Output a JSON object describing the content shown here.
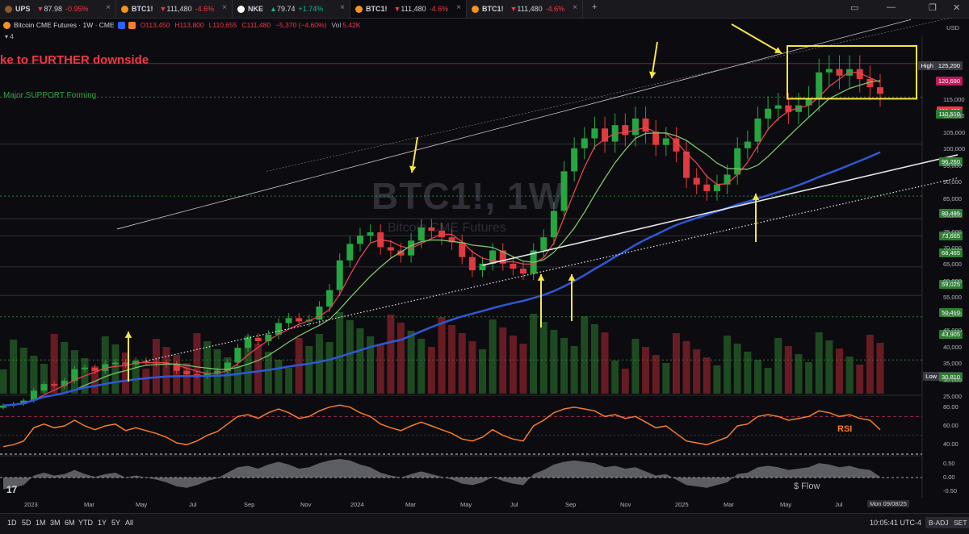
{
  "tabs": [
    {
      "symbol": "UPS",
      "price": "87.98",
      "change": "-0.95%",
      "dir": "down",
      "icon_color": "#8b5a2b"
    },
    {
      "symbol": "BTC1!",
      "price": "111,480",
      "change": "-4.6%",
      "dir": "down",
      "icon_color": "#f7931a"
    },
    {
      "symbol": "NKE",
      "price": "79.74",
      "change": "+1.74%",
      "dir": "up",
      "icon_color": "#ffffff"
    },
    {
      "symbol": "BTC1!",
      "price": "111,480",
      "change": "-4.6%",
      "dir": "down",
      "icon_color": "#f7931a",
      "active": true
    },
    {
      "symbol": "BTC1!",
      "price": "111,480",
      "change": "-4.6%",
      "dir": "down",
      "icon_color": "#f7931a"
    }
  ],
  "window": {
    "add": "+",
    "icons": [
      "layout-icon",
      "minimize-icon",
      "restore-icon",
      "close-icon"
    ]
  },
  "legend": {
    "title": "Bitcoin CME Futures · 1W · CME",
    "open": "O113,450",
    "high": "H113,800",
    "low": "L110,655",
    "close": "C111,480",
    "change": "−5,370 (−4.60%)",
    "vol_label": "Vol",
    "vol": "5.42K",
    "indicator_count": "4"
  },
  "annotations": {
    "headline": "ke to FURTHER downside",
    "support": "Major SUPPORT Forming",
    "rsi": "RSI",
    "flow": "$ Flow",
    "watermark_symbol": "BTC1!, 1W",
    "watermark_name": "Bitcoin CME Futures"
  },
  "price_axis": {
    "currency": "USD",
    "ticks": [
      "115,000",
      "110,000",
      "105,000",
      "100,000",
      "95,000",
      "90,000",
      "85,000",
      "80,000",
      "75,000",
      "70,000",
      "65,000",
      "60,000",
      "55,000",
      "50,000",
      "45,000",
      "40,000",
      "35,000",
      "30,000",
      "25,000"
    ],
    "labels": [
      {
        "text": "High",
        "value": "125,200",
        "color": "#3a3a44"
      },
      {
        "text": "",
        "value": "120,690",
        "color": "#c2185b"
      },
      {
        "text": "",
        "value": "111,480",
        "color": "#f23645"
      },
      {
        "text": "",
        "value": "110,510",
        "color": "#2e7d32"
      },
      {
        "text": "",
        "value": "96,260",
        "color": "#2e7d32"
      },
      {
        "text": "",
        "value": "80,485",
        "color": "#2e7d32"
      },
      {
        "text": "",
        "value": "73,665",
        "color": "#2e7d32"
      },
      {
        "text": "",
        "value": "68,465",
        "color": "#2e7d32"
      },
      {
        "text": "",
        "value": "59,025",
        "color": "#2e7d32"
      },
      {
        "text": "",
        "value": "50,410",
        "color": "#2e7d32"
      },
      {
        "text": "",
        "value": "43,905",
        "color": "#2e7d32"
      },
      {
        "text": "Low",
        "value": "31,100",
        "color": "#3a3a44"
      },
      {
        "text": "",
        "value": "30,810",
        "color": "#2e7d32"
      }
    ],
    "rsi_ticks": [
      "80.00",
      "60.00",
      "40.00"
    ],
    "flow_ticks": [
      "0.50",
      "0.00",
      "-0.50"
    ]
  },
  "time_axis": {
    "labels": [
      "2023",
      "Mar",
      "May",
      "Jul",
      "Sep",
      "Nov",
      "2024",
      "Mar",
      "May",
      "Jul",
      "Sep",
      "Nov",
      "2025",
      "Mar",
      "May",
      "Jul"
    ],
    "current_date": "Mon 09/08/25"
  },
  "bottom_bar": {
    "ranges": [
      "1D",
      "5D",
      "1M",
      "3M",
      "6M",
      "YTD",
      "1Y",
      "5Y",
      "All"
    ],
    "clock": "10:05:41 UTC-4",
    "badj": "B-ADJ",
    "set": "SET"
  },
  "chart_data": {
    "type": "candlestick",
    "symbol": "BTC1!",
    "interval": "1W",
    "ylim": [
      25000,
      126000
    ],
    "last_price": 111480,
    "key_levels": [
      125200,
      120690,
      110510,
      96260,
      80485,
      73665,
      68465,
      59025,
      50410,
      43905,
      31100,
      30810
    ],
    "approx_closes": [
      17000,
      17500,
      18500,
      21500,
      23500,
      23000,
      24500,
      28000,
      28500,
      27500,
      29500,
      30000,
      29500,
      30500,
      30200,
      29800,
      29500,
      27500,
      26500,
      26000,
      26800,
      27500,
      30000,
      34500,
      37500,
      36500,
      38500,
      42000,
      43500,
      42500,
      43000,
      47000,
      52000,
      61000,
      66000,
      68500,
      69500,
      65000,
      64000,
      62500,
      67000,
      71000,
      70000,
      68000,
      66500,
      62000,
      58000,
      60000,
      64000,
      60000,
      58500,
      57000,
      64000,
      68000,
      76000,
      88000,
      95000,
      98000,
      101000,
      97000,
      102000,
      99000,
      104000,
      100000,
      96000,
      98000,
      94000,
      86000,
      84000,
      82000,
      84000,
      87000,
      95000,
      97000,
      104000,
      107000,
      108000,
      106000,
      108000,
      110000,
      118000,
      119000,
      117000,
      119000,
      116000,
      113500,
      111480
    ],
    "rsi_approx": [
      38,
      40,
      44,
      58,
      62,
      58,
      60,
      66,
      60,
      56,
      60,
      62,
      55,
      58,
      55,
      52,
      48,
      42,
      40,
      44,
      50,
      54,
      62,
      70,
      72,
      68,
      74,
      78,
      74,
      68,
      70,
      76,
      80,
      82,
      80,
      74,
      70,
      62,
      58,
      55,
      60,
      64,
      60,
      56,
      52,
      46,
      44,
      48,
      56,
      50,
      46,
      44,
      60,
      66,
      74,
      78,
      80,
      78,
      76,
      70,
      72,
      68,
      70,
      64,
      58,
      60,
      52,
      44,
      42,
      40,
      44,
      48,
      60,
      62,
      70,
      72,
      70,
      66,
      68,
      70,
      76,
      74,
      70,
      72,
      68,
      66,
      56
    ]
  }
}
